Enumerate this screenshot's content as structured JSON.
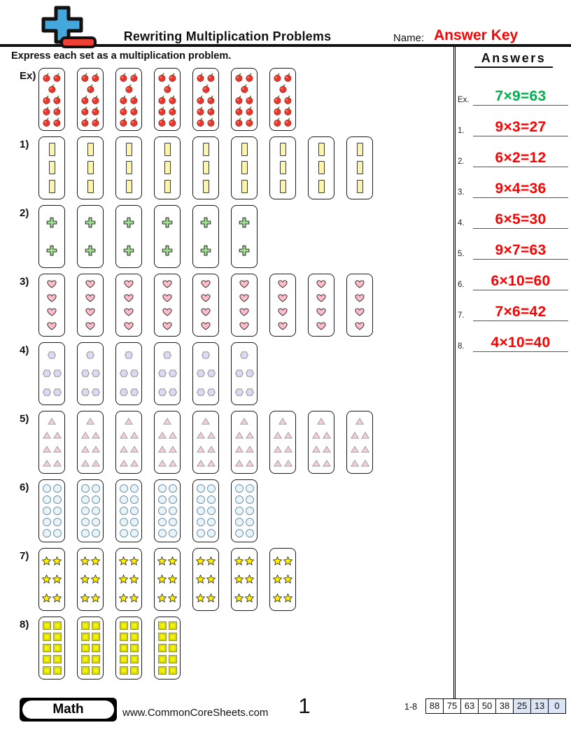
{
  "header": {
    "title": "Rewriting Multiplication Problems",
    "name_label": "Name:",
    "name_value": "Answer Key",
    "logo": {
      "plus_color": "#45a8dc",
      "minus_color": "#ee4035"
    }
  },
  "instruction": "Express each set as a multiplication problem.",
  "answers_panel": {
    "title": "Answers",
    "answer_green": "#00b050",
    "answer_red": "#ff0000",
    "items": [
      {
        "num": "Ex.",
        "value": "7×9=63",
        "color": "#00b050"
      },
      {
        "num": "1.",
        "value": "9×3=27",
        "color": "#ff0000"
      },
      {
        "num": "2.",
        "value": "6×2=12",
        "color": "#ff0000"
      },
      {
        "num": "3.",
        "value": "9×4=36",
        "color": "#ff0000"
      },
      {
        "num": "4.",
        "value": "6×5=30",
        "color": "#ff0000"
      },
      {
        "num": "5.",
        "value": "9×7=63",
        "color": "#ff0000"
      },
      {
        "num": "6.",
        "value": "6×10=60",
        "color": "#ff0000"
      },
      {
        "num": "7.",
        "value": "7×6=42",
        "color": "#ff0000"
      },
      {
        "num": "8.",
        "value": "4×10=40",
        "color": "#ff0000"
      }
    ]
  },
  "problems": [
    {
      "label": "Ex)",
      "shape": "apple",
      "groups": 7,
      "per_group": 9
    },
    {
      "label": "1)",
      "shape": "bar",
      "groups": 9,
      "per_group": 3
    },
    {
      "label": "2)",
      "shape": "plus",
      "groups": 6,
      "per_group": 2
    },
    {
      "label": "3)",
      "shape": "heart",
      "groups": 9,
      "per_group": 4
    },
    {
      "label": "4)",
      "shape": "hexagon",
      "groups": 6,
      "per_group": 5
    },
    {
      "label": "5)",
      "shape": "triangle",
      "groups": 9,
      "per_group": 7
    },
    {
      "label": "6)",
      "shape": "circle",
      "groups": 6,
      "per_group": 10
    },
    {
      "label": "7)",
      "shape": "star",
      "groups": 7,
      "per_group": 6
    },
    {
      "label": "8)",
      "shape": "square",
      "groups": 4,
      "per_group": 10
    }
  ],
  "shapes": {
    "apple": {
      "fill": "#e8372c",
      "leaf": "#3c7d21",
      "stroke": "#8a1f16"
    },
    "bar": {
      "fill": "#fcf5ad",
      "stroke": "#3a3a3a"
    },
    "plus": {
      "fill": "#9fe08f",
      "stroke": "#333333"
    },
    "heart": {
      "fill": "#ffbcc9",
      "stroke": "#222222"
    },
    "hexagon": {
      "fill": "#dcd9f2",
      "stroke": "#888888"
    },
    "triangle": {
      "fill": "#f6cce0",
      "stroke": "#999999"
    },
    "circle": {
      "fill": "#e9f4f9",
      "stroke": "#7092ac"
    },
    "star": {
      "fill": "#ffee00",
      "stroke": "#222222"
    },
    "square": {
      "fill": "#f2f20c",
      "stroke": "#8e8e5a",
      "inner": "#d8d800"
    }
  },
  "footer": {
    "subject": "Math",
    "website": "www.CommonCoreSheets.com",
    "page_number": "1",
    "score_label": "1-8",
    "score_values": [
      "88",
      "75",
      "63",
      "50",
      "38",
      "25",
      "13",
      "0"
    ],
    "score_highlight_from": 5,
    "score_highlight_color": "#dbe5f6"
  }
}
